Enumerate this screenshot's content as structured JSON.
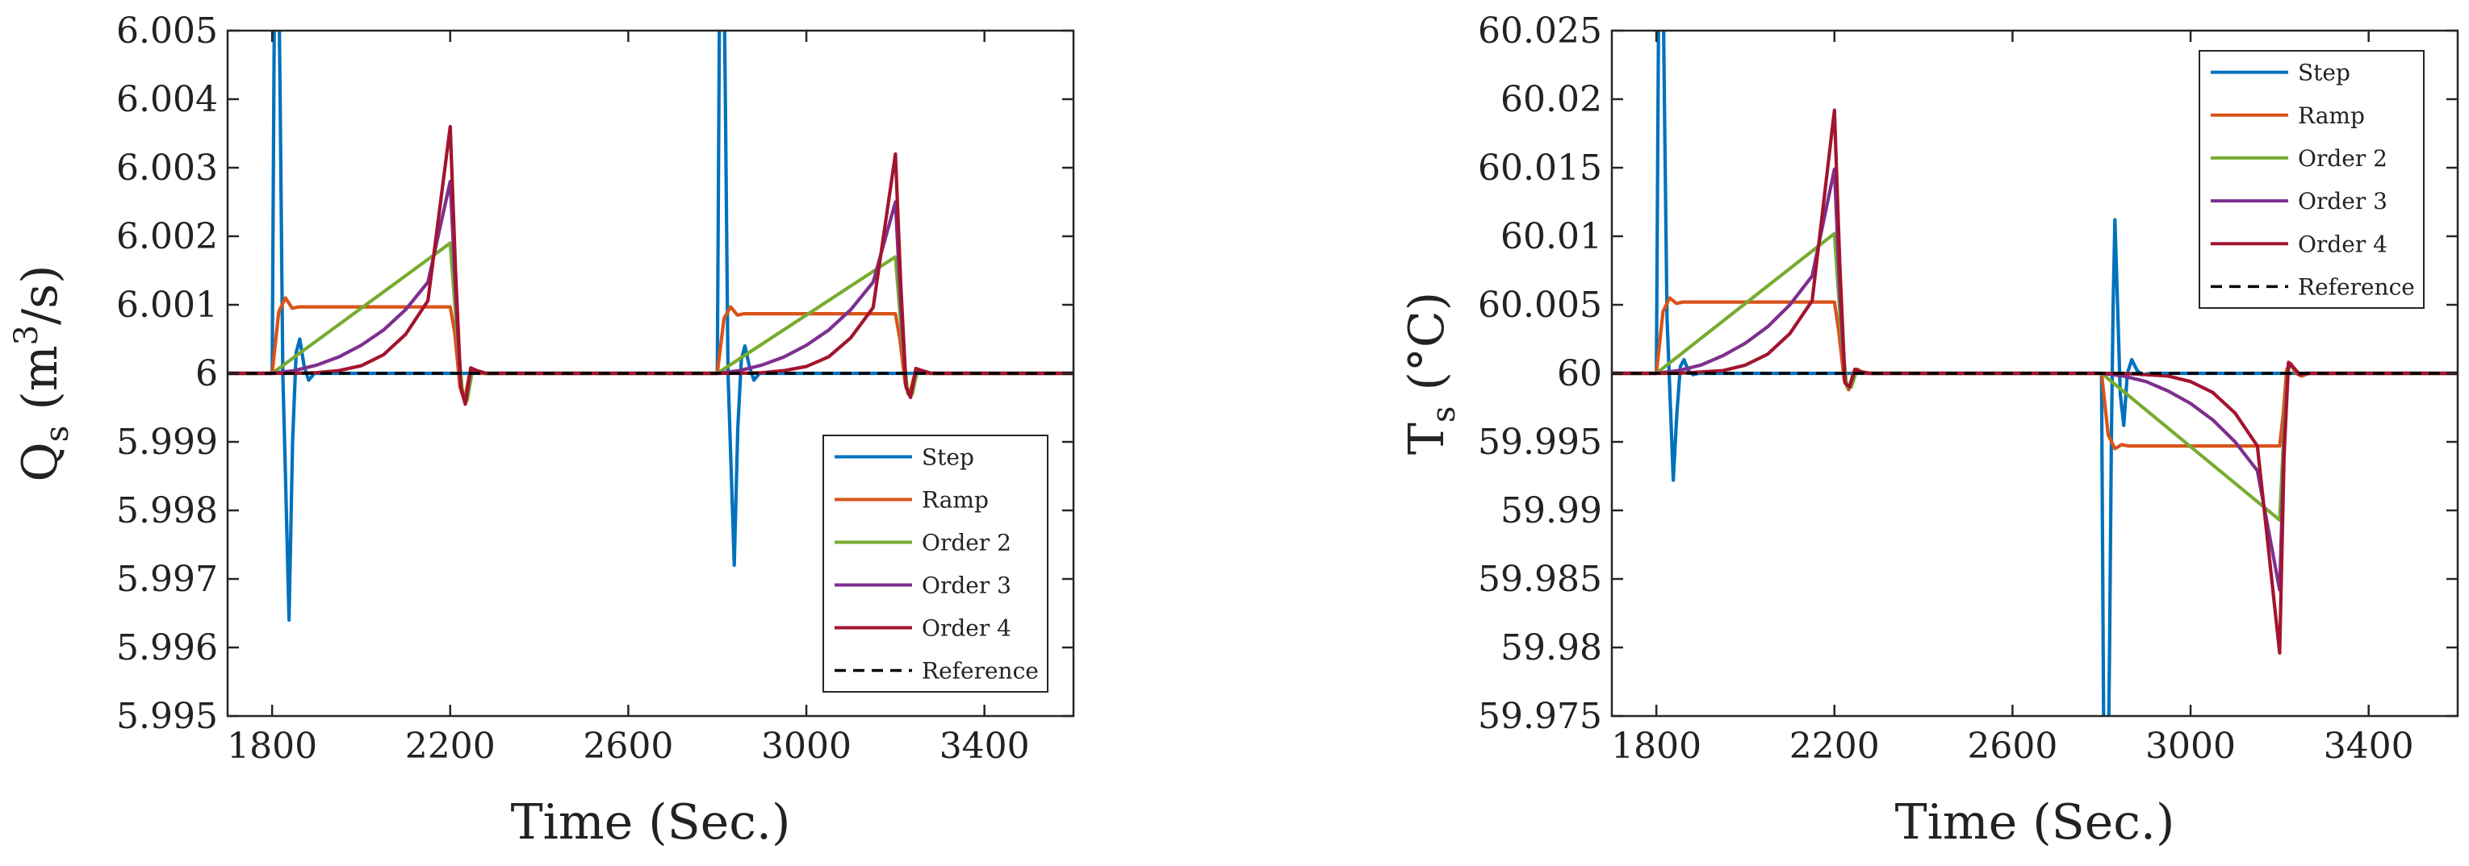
{
  "chart_data": [
    {
      "type": "line",
      "id": "left",
      "ylabel": {
        "base": "Q",
        "sub": "s",
        "unit_pre": " (m",
        "unit_sup": "3",
        "unit_post": "/s)"
      },
      "xlabel": "Time (Sec.)",
      "xlim": [
        1700,
        3600
      ],
      "ylim": [
        5.995,
        6.005
      ],
      "xticks": [
        1800,
        2200,
        2600,
        3000,
        3400
      ],
      "xtick_labels": [
        "1800",
        "2200",
        "2600",
        "3000",
        "3400"
      ],
      "yticks": [
        5.995,
        5.996,
        5.997,
        5.998,
        5.999,
        6.0,
        6.001,
        6.002,
        6.003,
        6.004,
        6.005
      ],
      "ytick_labels": [
        "5.995",
        "5.996",
        "5.997",
        "5.998",
        "5.999",
        "6",
        "6.001",
        "6.002",
        "6.003",
        "6.004",
        "6.005"
      ],
      "legend": {
        "position": "bottom-right",
        "entries": [
          "Step",
          "Ramp",
          "Order 2",
          "Order 3",
          "Order 4",
          "Reference"
        ]
      },
      "series": [
        {
          "name": "Step",
          "color": "#0072BD",
          "style": "solid",
          "x": [
            1700,
            1800,
            1806,
            1812,
            1818,
            1824,
            1830,
            1838,
            1846,
            1854,
            1862,
            1872,
            1882,
            1895,
            1910,
            2780,
            2800,
            2806,
            2812,
            2818,
            2824,
            2830,
            2838,
            2846,
            2854,
            2862,
            2872,
            2882,
            2895,
            2910,
            3600
          ],
          "y": [
            6.0,
            6.0,
            6.0065,
            6.0075,
            6.004,
            6.0,
            5.9985,
            5.9964,
            5.999,
            6.0003,
            6.0005,
            6.0001,
            5.9999,
            6.0,
            6.0,
            6.0,
            6.0,
            6.0065,
            6.0075,
            6.004,
            6.0,
            5.9988,
            5.9972,
            5.9992,
            6.0002,
            6.0004,
            6.0001,
            5.9999,
            6.0,
            6.0,
            6.0
          ]
        },
        {
          "name": "Ramp",
          "color": "#D95319",
          "style": "solid",
          "x": [
            1700,
            1800,
            1815,
            1830,
            1845,
            1860,
            2200,
            2210,
            2222,
            2232,
            2242,
            2252,
            2265,
            2280,
            2780,
            2800,
            2815,
            2830,
            2845,
            2860,
            3200,
            3210,
            3222,
            3232,
            3242,
            3252,
            3265,
            3280,
            3600
          ],
          "y": [
            6.0,
            6.0,
            6.0009,
            6.0011,
            6.00095,
            6.00097,
            6.00097,
            6.0006,
            5.9998,
            5.9996,
            5.99995,
            6.00006,
            6.0,
            6.0,
            6.0,
            6.0,
            6.0008,
            6.00097,
            6.00085,
            6.00087,
            6.00087,
            6.0005,
            5.99985,
            5.9997,
            5.99995,
            6.00005,
            6.0,
            6.0,
            6.0
          ]
        },
        {
          "name": "Order 2",
          "color": "#77AC30",
          "style": "solid",
          "x": [
            1700,
            1800,
            2200,
            2215,
            2228,
            2238,
            2250,
            2265,
            2280,
            2780,
            2800,
            3200,
            3215,
            3228,
            3238,
            3250,
            3265,
            3280,
            3600
          ],
          "y": [
            6.0,
            6.0,
            6.0019,
            6.0006,
            5.9997,
            5.9996,
            6.00005,
            6.00003,
            6.0,
            6.0,
            6.0,
            6.0017,
            6.0005,
            5.9997,
            5.9997,
            6.00005,
            6.00003,
            6.0,
            6.0
          ]
        },
        {
          "name": "Order 3",
          "color": "#7E2F8E",
          "style": "solid",
          "x": [
            1700,
            1800,
            1850,
            1900,
            1950,
            2000,
            2050,
            2100,
            2150,
            2200,
            2212,
            2224,
            2234,
            2246,
            2260,
            2280,
            2780,
            2800,
            2850,
            2900,
            2950,
            3000,
            3050,
            3100,
            3150,
            3200,
            3212,
            3224,
            3234,
            3246,
            3260,
            3280,
            3600
          ],
          "y": [
            6.0,
            6.0,
            6.00004,
            6.00012,
            6.00024,
            6.00041,
            6.00063,
            6.00093,
            6.00133,
            6.0028,
            6.0012,
            5.9998,
            5.99955,
            6.00005,
            6.00004,
            6.0,
            6.0,
            6.0,
            6.00004,
            6.00012,
            6.00024,
            6.00041,
            6.00063,
            6.00093,
            6.00133,
            6.0025,
            6.001,
            5.9998,
            5.99965,
            6.00005,
            6.00004,
            6.0,
            6.0
          ]
        },
        {
          "name": "Order 4",
          "color": "#A2142F",
          "style": "solid",
          "x": [
            1700,
            1800,
            1850,
            1900,
            1950,
            2000,
            2050,
            2100,
            2150,
            2200,
            2212,
            2224,
            2234,
            2246,
            2260,
            2280,
            2780,
            2800,
            2850,
            2900,
            2950,
            3000,
            3050,
            3100,
            3150,
            3200,
            3212,
            3224,
            3234,
            3246,
            3260,
            3280,
            3600
          ],
          "y": [
            6.0,
            6.0,
            6.0,
            6.00001,
            6.00004,
            6.00011,
            6.00027,
            6.00057,
            6.00106,
            6.0036,
            6.0015,
            5.9998,
            5.99955,
            6.00008,
            6.00004,
            6.0,
            6.0,
            6.0,
            6.0,
            6.00001,
            6.00004,
            6.0001,
            6.00024,
            6.00052,
            6.00096,
            6.0032,
            6.0013,
            5.9998,
            5.99965,
            6.00007,
            6.00004,
            6.0,
            6.0
          ]
        },
        {
          "name": "Reference",
          "color": "#000000",
          "style": "dashed",
          "x": [
            1700,
            3600
          ],
          "y": [
            6.0,
            6.0
          ]
        }
      ]
    },
    {
      "type": "line",
      "id": "right",
      "ylabel": {
        "base": "T",
        "sub": "s",
        "unit_pre": " (°C)",
        "unit_sup": "",
        "unit_post": ""
      },
      "xlabel": "Time (Sec.)",
      "xlim": [
        1700,
        3600
      ],
      "ylim": [
        59.975,
        60.025
      ],
      "xticks": [
        1800,
        2200,
        2600,
        3000,
        3400
      ],
      "xtick_labels": [
        "1800",
        "2200",
        "2600",
        "3000",
        "3400"
      ],
      "yticks": [
        59.975,
        59.98,
        59.985,
        59.99,
        59.995,
        60.0,
        60.005,
        60.01,
        60.015,
        60.02,
        60.025
      ],
      "ytick_labels": [
        "59.975",
        "59.98",
        "59.985",
        "59.99",
        "59.995",
        "60",
        "60.005",
        "60.01",
        "60.015",
        "60.02",
        "60.025"
      ],
      "legend": {
        "position": "top-right",
        "entries": [
          "Step",
          "Ramp",
          "Order 2",
          "Order 3",
          "Order 4",
          "Reference"
        ]
      },
      "series": [
        {
          "name": "Step",
          "color": "#0072BD",
          "style": "solid",
          "x": [
            1700,
            1800,
            1806,
            1812,
            1818,
            1824,
            1830,
            1838,
            1846,
            1854,
            1862,
            1872,
            1882,
            1895,
            1910,
            2790,
            2800,
            2806,
            2812,
            2818,
            2822,
            2826,
            2830,
            2836,
            2842,
            2850,
            2858,
            2868,
            2880,
            2892,
            2910,
            3600
          ],
          "y": [
            60.0,
            60.0,
            60.032,
            60.038,
            60.02,
            60.004,
            59.999,
            59.9922,
            59.997,
            60.0005,
            60.001,
            60.0002,
            59.9999,
            60.0,
            60.0,
            60.0,
            60.0,
            59.968,
            59.962,
            59.98,
            59.995,
            60.005,
            60.0112,
            60.005,
            59.9985,
            59.9962,
            60.0,
            60.001,
            60.0002,
            59.9999,
            60.0,
            60.0
          ]
        },
        {
          "name": "Ramp",
          "color": "#D95319",
          "style": "solid",
          "x": [
            1700,
            1800,
            1815,
            1830,
            1845,
            1860,
            2200,
            2210,
            2222,
            2232,
            2242,
            2252,
            2265,
            2280,
            2790,
            2800,
            2815,
            2830,
            2845,
            2860,
            3200,
            3208,
            3216,
            3226,
            3236,
            3250,
            3265,
            3600
          ],
          "y": [
            60.0,
            60.0,
            60.0045,
            60.0055,
            60.0051,
            60.0052,
            60.0052,
            60.003,
            59.9995,
            59.9988,
            60.0,
            60.0003,
            60.0,
            60.0,
            60.0,
            60.0,
            59.9955,
            59.9945,
            59.9948,
            59.9947,
            59.9947,
            59.997,
            60.0003,
            60.0007,
            60.0,
            59.9998,
            60.0,
            60.0
          ]
        },
        {
          "name": "Order 2",
          "color": "#77AC30",
          "style": "solid",
          "x": [
            1700,
            1800,
            2200,
            2215,
            2228,
            2238,
            2250,
            2265,
            2280,
            2790,
            2800,
            3200,
            3210,
            3220,
            3232,
            3245,
            3260,
            3600
          ],
          "y": [
            60.0,
            60.0,
            60.0102,
            60.003,
            59.999,
            59.999,
            60.0002,
            60.0001,
            60.0,
            60.0,
            60.0,
            59.9893,
            59.996,
            60.0005,
            60.0004,
            59.9999,
            60.0,
            60.0
          ]
        },
        {
          "name": "Order 3",
          "color": "#7E2F8E",
          "style": "solid",
          "x": [
            1700,
            1800,
            1850,
            1900,
            1950,
            2000,
            2050,
            2100,
            2150,
            2200,
            2212,
            2224,
            2234,
            2246,
            2260,
            2280,
            2790,
            2800,
            2850,
            2900,
            2950,
            3000,
            3050,
            3100,
            3150,
            3200,
            3210,
            3220,
            3232,
            3245,
            3260,
            3600
          ],
          "y": [
            60.0,
            60.0,
            60.0002,
            60.0006,
            60.0013,
            60.0022,
            60.0034,
            60.005,
            60.0071,
            60.0149,
            60.006,
            59.9993,
            59.999,
            60.0002,
            60.0001,
            60.0,
            60.0,
            60.0,
            59.9998,
            59.9994,
            59.9987,
            59.9978,
            59.9966,
            59.995,
            59.9929,
            59.9842,
            59.995,
            60.0007,
            60.0004,
            59.9999,
            60.0,
            60.0
          ]
        },
        {
          "name": "Order 4",
          "color": "#A2142F",
          "style": "solid",
          "x": [
            1700,
            1800,
            1850,
            1900,
            1950,
            2000,
            2050,
            2100,
            2150,
            2200,
            2212,
            2224,
            2234,
            2246,
            2260,
            2280,
            2790,
            2800,
            2850,
            2900,
            2950,
            3000,
            3050,
            3100,
            3150,
            3200,
            3210,
            3220,
            3232,
            3245,
            3260,
            3600
          ],
          "y": [
            60.0,
            60.0,
            60.0,
            60.0001,
            60.0002,
            60.0006,
            60.0014,
            60.0029,
            60.0053,
            60.0192,
            60.008,
            59.9993,
            59.999,
            60.0003,
            60.0001,
            60.0,
            60.0,
            60.0,
            60.0,
            59.9999,
            59.9998,
            59.9994,
            59.9986,
            59.9971,
            59.9947,
            59.9796,
            59.994,
            60.0008,
            60.0004,
            59.9999,
            60.0,
            60.0
          ]
        },
        {
          "name": "Reference",
          "color": "#000000",
          "style": "dashed",
          "x": [
            1700,
            3600
          ],
          "y": [
            60.0,
            60.0
          ]
        }
      ]
    }
  ]
}
